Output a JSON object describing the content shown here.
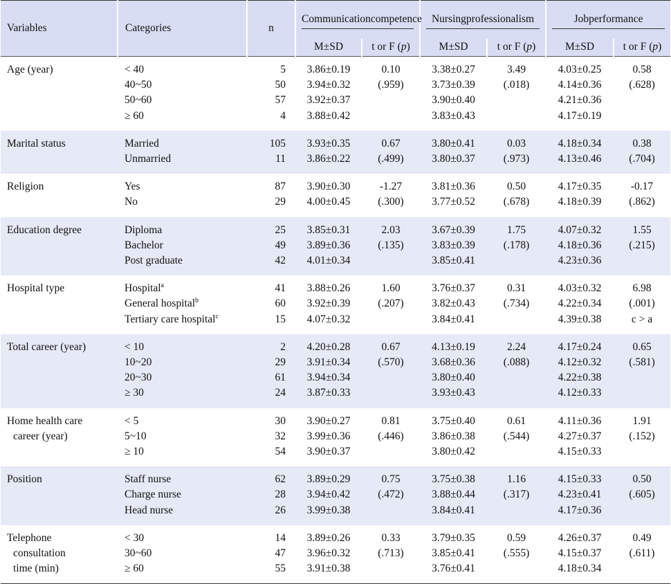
{
  "header": {
    "variables": "Variables",
    "categories": "Categories",
    "n": "n",
    "groups": [
      {
        "line1": "Communication",
        "line2": "competence"
      },
      {
        "line1": "Nursing",
        "line2": "professionalism"
      },
      {
        "line1": "Job",
        "line2": "performance"
      }
    ],
    "msd": "M±SD",
    "stat_prefix": "t or F (",
    "stat_p": "p",
    "stat_suffix": ")"
  },
  "rows": [
    {
      "variable": [
        "Age (year)"
      ],
      "categories": [
        "< 40",
        "40~50",
        "50~60",
        "≥ 60"
      ],
      "n": [
        "5",
        "50",
        "57",
        "4"
      ],
      "cc": [
        "3.86±0.19",
        "3.94±0.32",
        "3.92±0.37",
        "3.88±0.42"
      ],
      "cc_stat": [
        "0.10",
        "(.959)"
      ],
      "np": [
        "3.38±0.27",
        "3.73±0.39",
        "3.90±0.40",
        "3.83±0.43"
      ],
      "np_stat": [
        "3.49",
        "(.018)"
      ],
      "jp": [
        "4.03±0.25",
        "4.14±0.36",
        "4.21±0.36",
        "4.17±0.19"
      ],
      "jp_stat": [
        "0.58",
        "(.628)"
      ]
    },
    {
      "variable": [
        "Marital status"
      ],
      "categories": [
        "Married",
        "Unmarried"
      ],
      "n": [
        "105",
        "11"
      ],
      "cc": [
        "3.93±0.35",
        "3.86±0.22"
      ],
      "cc_stat": [
        "0.67",
        "(.499)"
      ],
      "np": [
        "3.80±0.41",
        "3.80±0.37"
      ],
      "np_stat": [
        "0.03",
        "(.973)"
      ],
      "jp": [
        "4.18±0.34",
        "4.13±0.46"
      ],
      "jp_stat": [
        "0.38",
        "(.704)"
      ]
    },
    {
      "variable": [
        "Religion"
      ],
      "categories": [
        "Yes",
        "No"
      ],
      "n": [
        "87",
        "29"
      ],
      "cc": [
        "3.90±0.30",
        "4.00±0.45"
      ],
      "cc_stat": [
        "-1.27",
        "(.300)"
      ],
      "np": [
        "3.81±0.36",
        "3.77±0.52"
      ],
      "np_stat": [
        "0.50",
        "(.678)"
      ],
      "jp": [
        "4.17±0.35",
        "4.18±0.39"
      ],
      "jp_stat": [
        "-0.17",
        "(.862)"
      ]
    },
    {
      "variable": [
        "Education degree"
      ],
      "categories": [
        "Diploma",
        "Bachelor",
        "Post graduate"
      ],
      "n": [
        "25",
        "49",
        "42"
      ],
      "cc": [
        "3.85±0.31",
        "3.89±0.36",
        "4.01±0.34"
      ],
      "cc_stat": [
        "2.03",
        "(.135)"
      ],
      "np": [
        "3.67±0.39",
        "3.83±0.39",
        "3.85±0.41"
      ],
      "np_stat": [
        "1.75",
        "(.178)"
      ],
      "jp": [
        "4.07±0.32",
        "4.18±0.36",
        "4.23±0.36"
      ],
      "jp_stat": [
        "1.55",
        "(.215)"
      ]
    },
    {
      "variable": [
        "Hospital type"
      ],
      "categories": [
        "Hospital",
        "General hospital",
        "Tertiary care hospital"
      ],
      "category_sups": [
        "a",
        "b",
        "c"
      ],
      "n": [
        "41",
        "60",
        "15"
      ],
      "cc": [
        "3.88±0.26",
        "3.92±0.39",
        "4.07±0.32"
      ],
      "cc_stat": [
        "1.60",
        "(.207)"
      ],
      "np": [
        "3.76±0.37",
        "3.82±0.43",
        "3.84±0.41"
      ],
      "np_stat": [
        "0.31",
        "(.734)"
      ],
      "jp": [
        "4.03±0.32",
        "4.22±0.34",
        "4.39±0.38"
      ],
      "jp_stat": [
        "6.98",
        "(.001)",
        "c > a"
      ]
    },
    {
      "variable": [
        "Total career (year)"
      ],
      "categories": [
        "< 10",
        "10~20",
        "20~30",
        "≥ 30"
      ],
      "n": [
        "2",
        "29",
        "61",
        "24"
      ],
      "cc": [
        "4.20±0.28",
        "3.91±0.34",
        "3.94±0.34",
        "3.87±0.33"
      ],
      "cc_stat": [
        "0.67",
        "(.570)"
      ],
      "np": [
        "4.13±0.19",
        "3.68±0.36",
        "3.80±0.40",
        "3.93±0.43"
      ],
      "np_stat": [
        "2.24",
        "(.088)"
      ],
      "jp": [
        "4.17±0.24",
        "4.12±0.32",
        "4.22±0.38",
        "4.12±0.33"
      ],
      "jp_stat": [
        "0.65",
        "(.581)"
      ]
    },
    {
      "variable": [
        "Home health care",
        "career (year)"
      ],
      "categories": [
        "< 5",
        "5~10",
        "≥ 10"
      ],
      "n": [
        "30",
        "32",
        "54"
      ],
      "cc": [
        "3.90±0.27",
        "3.99±0.36",
        "3.90±0.37"
      ],
      "cc_stat": [
        "0.81",
        "(.446)"
      ],
      "np": [
        "3.75±0.40",
        "3.86±0.38",
        "3.80±0.42"
      ],
      "np_stat": [
        "0.61",
        "(.544)"
      ],
      "jp": [
        "4.11±0.36",
        "4.27±0.37",
        "4.15±0.33"
      ],
      "jp_stat": [
        "1.91",
        "(.152)"
      ]
    },
    {
      "variable": [
        "Position"
      ],
      "categories": [
        "Staff nurse",
        "Charge nurse",
        "Head nurse"
      ],
      "n": [
        "62",
        "28",
        "26"
      ],
      "cc": [
        "3.89±0.29",
        "3.94±0.42",
        "3.99±0.38"
      ],
      "cc_stat": [
        "0.75",
        "(.472)"
      ],
      "np": [
        "3.75±0.38",
        "3.88±0.44",
        "3.84±0.41"
      ],
      "np_stat": [
        "1.16",
        "(.317)"
      ],
      "jp": [
        "4.15±0.33",
        "4.23±0.41",
        "4.17±0.36"
      ],
      "jp_stat": [
        "0.50",
        "(.605)"
      ]
    },
    {
      "variable": [
        "Telephone",
        "consultation",
        "time (min)"
      ],
      "categories": [
        "< 30",
        "30~60",
        "≥ 60"
      ],
      "n": [
        "14",
        "47",
        "55"
      ],
      "cc": [
        "3.89±0.26",
        "3.96±0.32",
        "3.91±0.38"
      ],
      "cc_stat": [
        "0.33",
        "(.713)"
      ],
      "np": [
        "3.79±0.35",
        "3.85±0.41",
        "3.76±0.41"
      ],
      "np_stat": [
        "0.59",
        "(.555)"
      ],
      "jp": [
        "4.26±0.37",
        "4.15±0.37",
        "4.18±0.34"
      ],
      "jp_stat": [
        "0.49",
        "(.611)"
      ]
    }
  ]
}
